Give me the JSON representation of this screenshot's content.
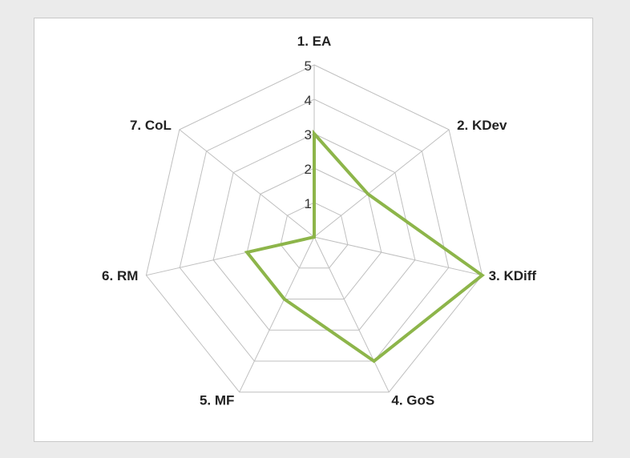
{
  "chart_data": {
    "type": "radar",
    "axes": [
      "1. EA",
      "2. KDev",
      "3. KDiff",
      "4. GoS",
      "5. MF",
      "6. RM",
      "7. CoL"
    ],
    "scale": {
      "min": 0,
      "max": 5,
      "ticks": [
        "1",
        "2",
        "3",
        "4",
        "5"
      ]
    },
    "series": [
      {
        "values": [
          3,
          2,
          5,
          4,
          2,
          2,
          0
        ],
        "color": "#8db54a"
      }
    ],
    "grid_color": "#bfbfbf",
    "grid": true,
    "legend": "none"
  }
}
